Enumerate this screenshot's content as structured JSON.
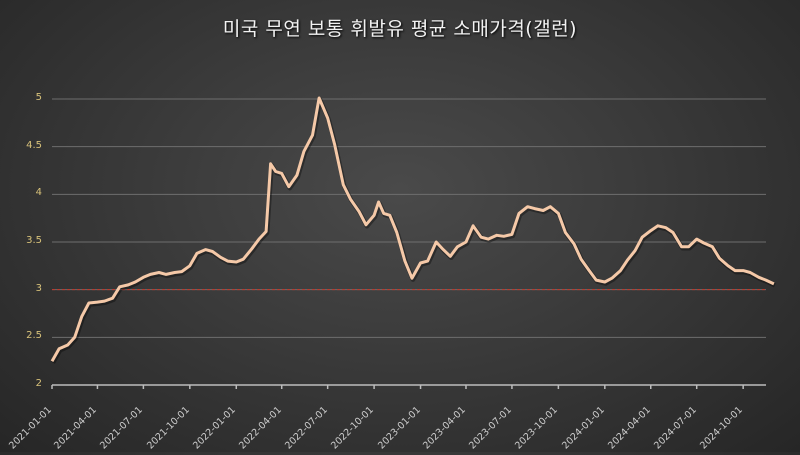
{
  "chart_data": {
    "type": "line",
    "title": "미국 무연 보통 휘발유 평균 소매가격(갤런)",
    "xlabel": "",
    "ylabel": "",
    "ylim": [
      2,
      5
    ],
    "yticks": [
      "2",
      "2.5",
      "3",
      "3.5",
      "4",
      "4.5",
      "5"
    ],
    "xticks": [
      "2021-01-01",
      "2021-04-01",
      "2021-07-01",
      "2021-10-01",
      "2022-01-01",
      "2022-04-01",
      "2022-07-01",
      "2022-10-01",
      "2023-01-01",
      "2023-04-01",
      "2023-07-01",
      "2023-10-01",
      "2024-01-01",
      "2024-04-01",
      "2024-07-01",
      "2024-10-01"
    ],
    "grid": true,
    "reference_line": {
      "value": 3,
      "color": "#c0392b",
      "style": "dashed"
    },
    "series": [
      {
        "name": "미국 무연 보통 휘발유 평균 소매가격",
        "color": "#f5c9a8",
        "x": [
          "2021-01-01",
          "2021-01-15",
          "2021-02-01",
          "2021-02-15",
          "2021-03-01",
          "2021-03-15",
          "2021-04-01",
          "2021-04-15",
          "2021-05-01",
          "2021-05-15",
          "2021-06-01",
          "2021-06-15",
          "2021-07-01",
          "2021-07-15",
          "2021-08-01",
          "2021-08-15",
          "2021-09-01",
          "2021-09-15",
          "2021-10-01",
          "2021-10-15",
          "2021-11-01",
          "2021-11-15",
          "2021-12-01",
          "2021-12-15",
          "2022-01-01",
          "2022-01-15",
          "2022-02-01",
          "2022-02-15",
          "2022-03-01",
          "2022-03-10",
          "2022-03-20",
          "2022-04-01",
          "2022-04-15",
          "2022-05-01",
          "2022-05-15",
          "2022-06-01",
          "2022-06-14",
          "2022-07-01",
          "2022-07-15",
          "2022-08-01",
          "2022-08-15",
          "2022-09-01",
          "2022-09-15",
          "2022-10-01",
          "2022-10-10",
          "2022-10-20",
          "2022-11-01",
          "2022-11-15",
          "2022-12-01",
          "2022-12-15",
          "2023-01-01",
          "2023-01-15",
          "2023-02-01",
          "2023-02-15",
          "2023-03-01",
          "2023-03-15",
          "2023-04-01",
          "2023-04-15",
          "2023-05-01",
          "2023-05-15",
          "2023-06-01",
          "2023-06-15",
          "2023-07-01",
          "2023-07-15",
          "2023-08-01",
          "2023-08-15",
          "2023-09-01",
          "2023-09-15",
          "2023-10-01",
          "2023-10-15",
          "2023-11-01",
          "2023-11-15",
          "2023-12-01",
          "2023-12-15",
          "2024-01-01",
          "2024-01-15",
          "2024-02-01",
          "2024-02-15",
          "2024-03-01",
          "2024-03-15",
          "2024-04-01",
          "2024-04-15",
          "2024-05-01",
          "2024-05-15",
          "2024-06-01",
          "2024-06-15",
          "2024-07-01",
          "2024-07-15",
          "2024-08-01",
          "2024-08-15",
          "2024-09-01",
          "2024-09-15",
          "2024-10-01",
          "2024-10-15",
          "2024-11-01",
          "2024-11-15",
          "2024-12-01"
        ],
        "values": [
          2.25,
          2.38,
          2.42,
          2.5,
          2.72,
          2.86,
          2.87,
          2.88,
          2.91,
          3.03,
          3.05,
          3.08,
          3.13,
          3.16,
          3.18,
          3.16,
          3.18,
          3.19,
          3.25,
          3.38,
          3.42,
          3.4,
          3.34,
          3.3,
          3.29,
          3.32,
          3.43,
          3.53,
          3.61,
          4.32,
          4.24,
          4.22,
          4.08,
          4.2,
          4.45,
          4.62,
          5.01,
          4.8,
          4.52,
          4.1,
          3.95,
          3.82,
          3.68,
          3.78,
          3.92,
          3.8,
          3.78,
          3.6,
          3.3,
          3.12,
          3.28,
          3.3,
          3.5,
          3.42,
          3.35,
          3.45,
          3.5,
          3.67,
          3.55,
          3.53,
          3.57,
          3.56,
          3.58,
          3.8,
          3.87,
          3.85,
          3.83,
          3.87,
          3.8,
          3.6,
          3.48,
          3.32,
          3.2,
          3.1,
          3.08,
          3.12,
          3.2,
          3.31,
          3.41,
          3.55,
          3.62,
          3.67,
          3.65,
          3.6,
          3.45,
          3.45,
          3.53,
          3.49,
          3.45,
          3.33,
          3.25,
          3.2,
          3.2,
          3.18,
          3.13,
          3.1,
          3.06
        ]
      }
    ]
  }
}
